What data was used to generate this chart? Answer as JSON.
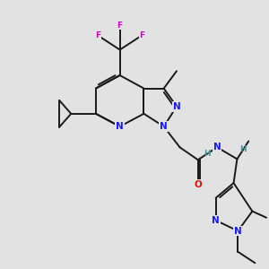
{
  "bg_color": "#e2e2e2",
  "bond_color": "#1a1a1a",
  "bond_width": 1.4,
  "dbo": 0.08,
  "atom_colors": {
    "N": "#1818ff",
    "O": "#dd1111",
    "F": "#cc00cc",
    "H": "#3a9a9a",
    "C": "#1a1a1a"
  },
  "fs": 7.5,
  "fsl": 6.5
}
